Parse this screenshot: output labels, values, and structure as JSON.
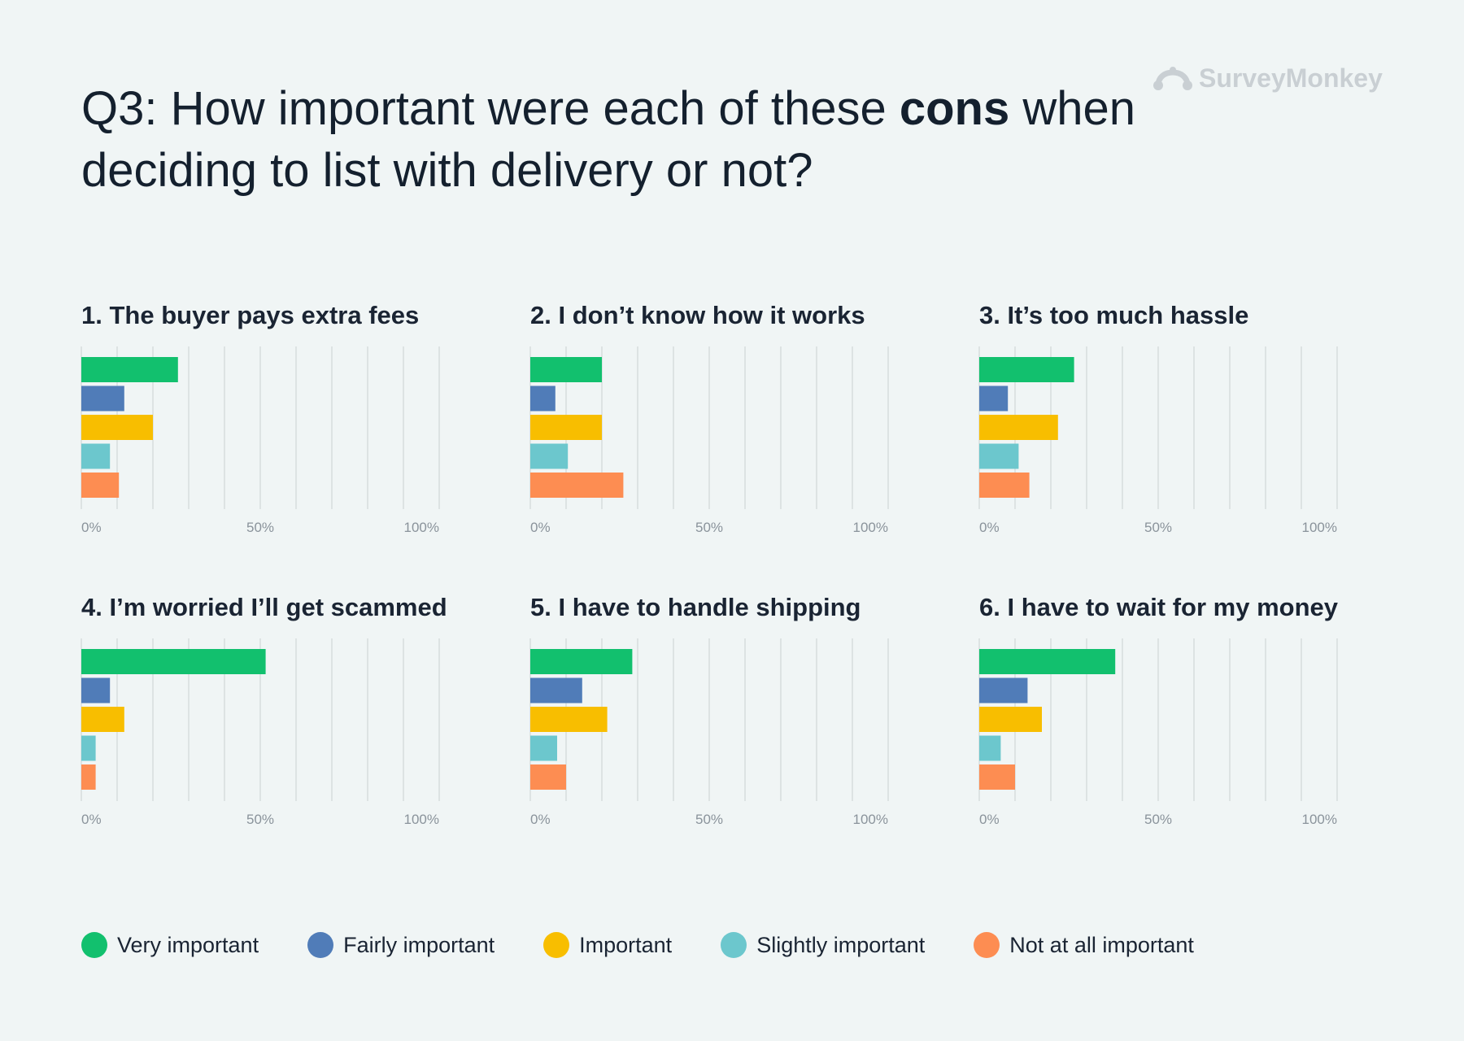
{
  "header": {
    "title_prefix": "Q3: How important were each of these ",
    "title_bold": "cons",
    "title_suffix": " when deciding to list with delivery or not?"
  },
  "logo": {
    "text": "SurveyMonkey",
    "icon": "surveymonkey-logo-icon"
  },
  "colors": {
    "very": "#12c06e",
    "fairly": "#507cb8",
    "important": "#f8be00",
    "slightly": "#6cc7cd",
    "not": "#fd8d52",
    "grid": "#dde3e3",
    "tick": "#8a939b"
  },
  "legend": [
    {
      "label": "Very important",
      "color": "#12c06e"
    },
    {
      "label": "Fairly important",
      "color": "#507cb8"
    },
    {
      "label": "Important",
      "color": "#f8be00"
    },
    {
      "label": "Slightly important",
      "color": "#6cc7cd"
    },
    {
      "label": "Not at all important",
      "color": "#fd8d52"
    }
  ],
  "chart_data": [
    {
      "type": "bar",
      "orientation": "horizontal",
      "title": "1. The buyer pays extra fees",
      "categories": [
        "Very important",
        "Fairly important",
        "Important",
        "Slightly important",
        "Not at all important"
      ],
      "values": [
        27,
        12,
        20,
        8,
        10.5
      ],
      "xlim": [
        0,
        100
      ],
      "ticks": [
        "0%",
        "50%",
        "100%"
      ],
      "grid": true
    },
    {
      "type": "bar",
      "orientation": "horizontal",
      "title": "2. I don’t know how it works",
      "categories": [
        "Very important",
        "Fairly important",
        "Important",
        "Slightly important",
        "Not at all important"
      ],
      "values": [
        20,
        7,
        20,
        10.5,
        26
      ],
      "xlim": [
        0,
        100
      ],
      "ticks": [
        "0%",
        "50%",
        "100%"
      ],
      "grid": true
    },
    {
      "type": "bar",
      "orientation": "horizontal",
      "title": "3. It’s too much hassle",
      "categories": [
        "Very important",
        "Fairly important",
        "Important",
        "Slightly important",
        "Not at all important"
      ],
      "values": [
        26.5,
        8,
        22,
        11,
        14
      ],
      "xlim": [
        0,
        100
      ],
      "ticks": [
        "0%",
        "50%",
        "100%"
      ],
      "grid": true
    },
    {
      "type": "bar",
      "orientation": "horizontal",
      "title": "4. I’m worried I’ll get scammed",
      "categories": [
        "Very important",
        "Fairly important",
        "Important",
        "Slightly important",
        "Not at all important"
      ],
      "values": [
        51.5,
        8,
        12,
        4,
        4
      ],
      "xlim": [
        0,
        100
      ],
      "ticks": [
        "0%",
        "50%",
        "100%"
      ],
      "grid": true
    },
    {
      "type": "bar",
      "orientation": "horizontal",
      "title": "5. I have to handle shipping",
      "categories": [
        "Very important",
        "Fairly important",
        "Important",
        "Slightly important",
        "Not at all important"
      ],
      "values": [
        28.5,
        14.5,
        21.5,
        7.5,
        10
      ],
      "xlim": [
        0,
        100
      ],
      "ticks": [
        "0%",
        "50%",
        "100%"
      ],
      "grid": true
    },
    {
      "type": "bar",
      "orientation": "horizontal",
      "title": "6. I have to wait for my money",
      "categories": [
        "Very important",
        "Fairly important",
        "Important",
        "Slightly important",
        "Not at all important"
      ],
      "values": [
        38,
        13.5,
        17.5,
        6,
        10
      ],
      "xlim": [
        0,
        100
      ],
      "ticks": [
        "0%",
        "50%",
        "100%"
      ],
      "grid": true
    }
  ]
}
